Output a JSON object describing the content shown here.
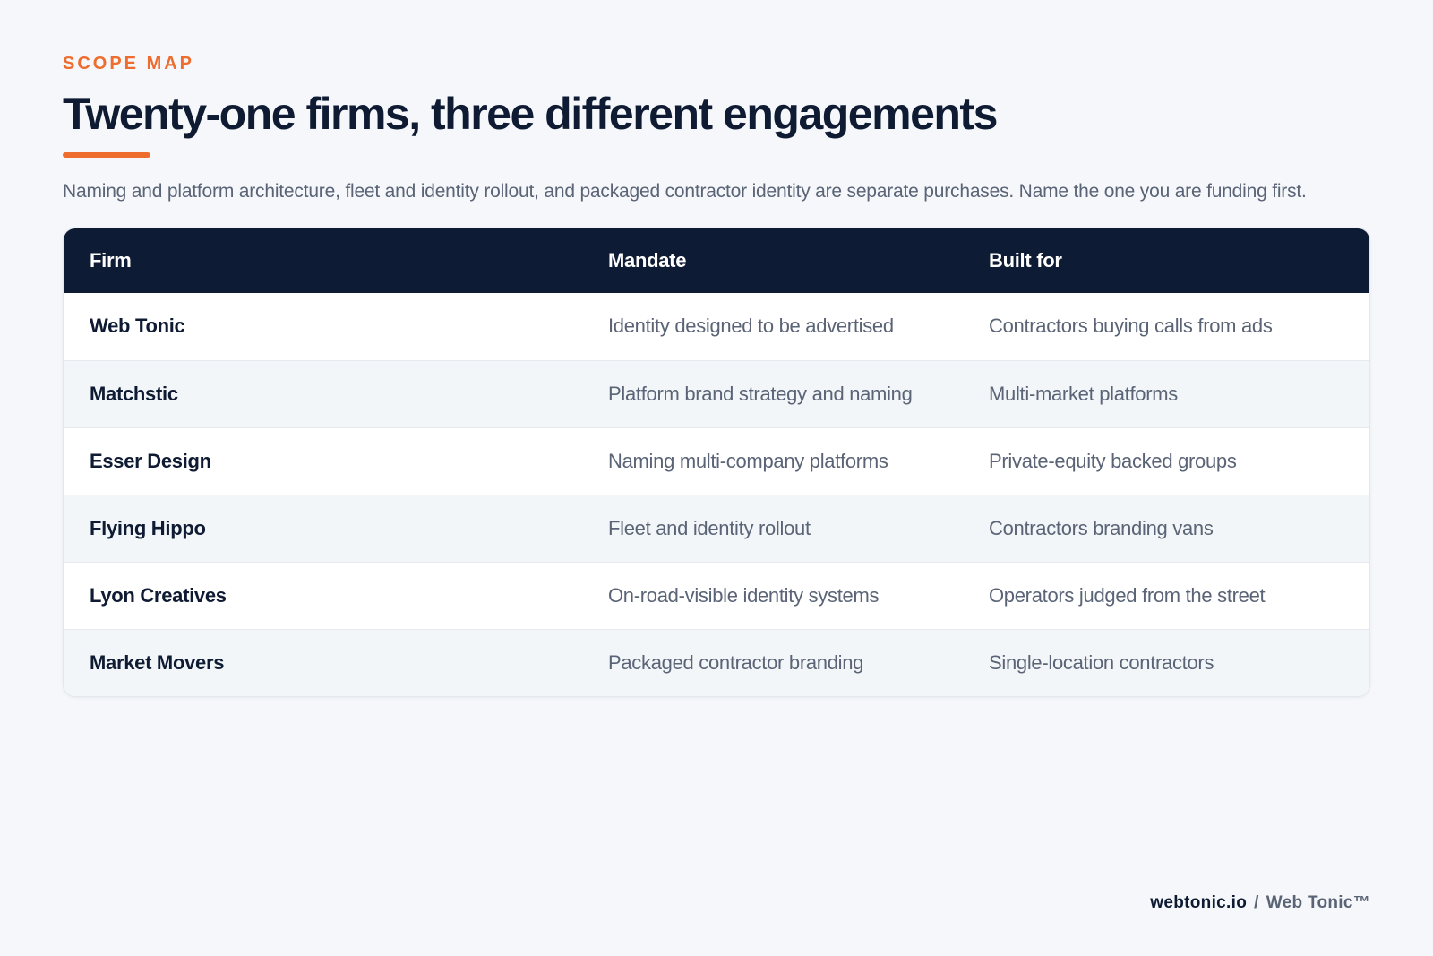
{
  "header": {
    "eyebrow": "SCOPE MAP",
    "title": "Twenty-one firms, three different engagements",
    "subtitle": "Naming and platform architecture, fleet and identity rollout, and packaged contractor identity are separate purchases. Name the one you are funding first."
  },
  "table": {
    "columns": [
      "Firm",
      "Mandate",
      "Built for"
    ],
    "rows": [
      {
        "firm": "Web Tonic",
        "mandate": "Identity designed to be advertised",
        "built_for": "Contractors buying calls from ads"
      },
      {
        "firm": "Matchstic",
        "mandate": "Platform brand strategy and naming",
        "built_for": "Multi-market platforms"
      },
      {
        "firm": "Esser Design",
        "mandate": "Naming multi-company platforms",
        "built_for": "Private-equity backed groups"
      },
      {
        "firm": "Flying Hippo",
        "mandate": "Fleet and identity rollout",
        "built_for": "Contractors branding vans"
      },
      {
        "firm": "Lyon Creatives",
        "mandate": "On-road-visible identity systems",
        "built_for": "Operators judged from the street"
      },
      {
        "firm": "Market Movers",
        "mandate": "Packaged contractor branding",
        "built_for": "Single-location contractors"
      }
    ]
  },
  "footer": {
    "domain": "webtonic.io",
    "separator": "/",
    "brand": "Web Tonic™"
  }
}
